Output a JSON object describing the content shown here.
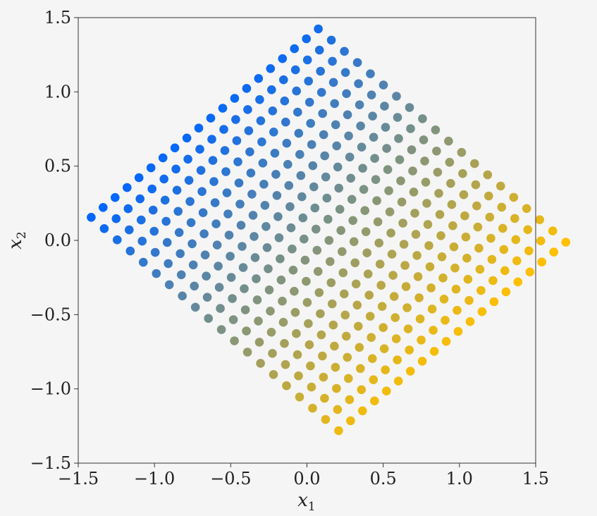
{
  "chart_data": {
    "type": "scatter",
    "title": "",
    "xlabel": "x",
    "xlabel_sub": "1",
    "ylabel": "x",
    "ylabel_sub": "2",
    "xlim": [
      -1.5,
      1.5
    ],
    "ylim": [
      -1.5,
      1.5
    ],
    "xticks": [
      -1.5,
      -1.0,
      -0.5,
      0.0,
      0.5,
      1.0,
      1.5
    ],
    "yticks": [
      -1.5,
      -1.0,
      -0.5,
      0.0,
      0.5,
      1.0,
      1.5
    ],
    "xtick_labels": [
      "−1.5",
      "−1.0",
      "−0.5",
      "0.0",
      "0.5",
      "1.0",
      "1.5"
    ],
    "ytick_labels": [
      "−1.5",
      "−1.0",
      "−0.5",
      "0.0",
      "0.5",
      "1.0",
      "1.5"
    ],
    "grid": false,
    "series": [
      {
        "lattice": {
          "origin": [
            -1.415,
            0.155
          ],
          "step_a": [
            0.0854,
            -0.0756
          ],
          "step_b": [
            0.0784,
            0.0668
          ],
          "count_a": 20,
          "count_b": 20
        },
        "colormap": [
          "#0066ff",
          "#ffc000"
        ]
      }
    ],
    "background": "#f5f5f5",
    "axes_color": "#333333"
  }
}
